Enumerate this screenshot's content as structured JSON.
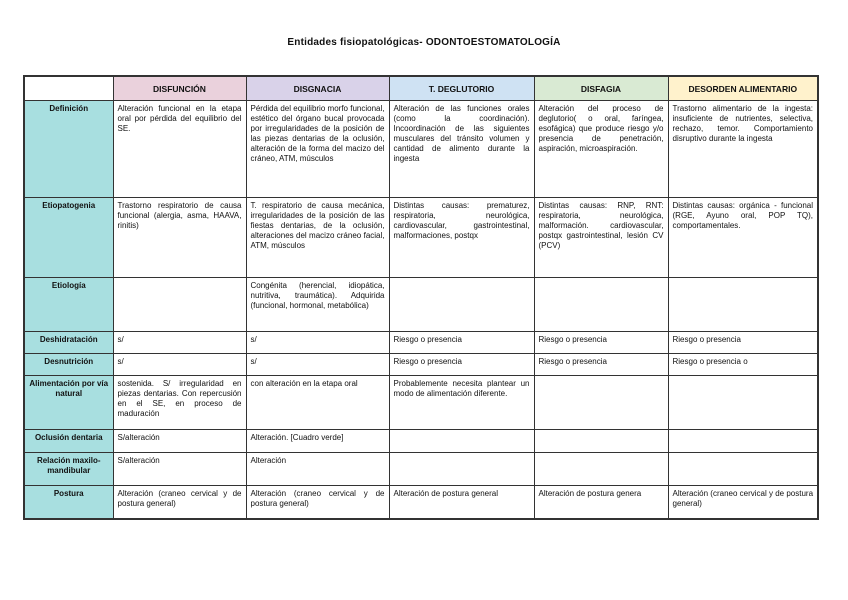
{
  "title": "Entidades fisiopatológicas- ODONTOESTOMATOLOGÍA",
  "colors": {
    "label_bg": "#a8dfe0",
    "disfuncion": "#ead1dc",
    "disgnacia": "#d9d2e9",
    "deglutorio": "#cfe2f3",
    "disfagia": "#d9ead3",
    "desorden": "#fff2cc"
  },
  "columns": [
    "",
    "DISFUNCIÓN",
    "DISGNACIA",
    "T. DEGLUTORIO",
    "DISFAGIA",
    "DESORDEN ALIMENTARIO"
  ],
  "rows": [
    {
      "label": "Definición",
      "cells": [
        "Alteración funcional en la etapa oral por pérdida del equilibrio del SE.",
        "Pérdida del equilibrio morfo funcional, estético del órgano bucal provocada por irregularidades de la posición de las piezas dentarias de la oclusión, alteración de la forma del macizo del cráneo, ATM, músculos",
        "Alteración de las funciones orales (como la coordinación). Incoordinación de las siguientes musculares del tránsito volumen y cantidad de alimento durante la ingesta",
        "Alteración del proceso de deglutorio( o oral, faríngea, esofágica) que produce riesgo y/o presencia de penetración, aspiración, microaspiración.",
        "Trastorno alimentario de la ingesta: insuficiente de nutrientes, selectiva, rechazo, temor. Comportamiento disruptivo durante la ingesta"
      ]
    },
    {
      "label": "Etiopatogenia",
      "cells": [
        "Trastorno respiratorio de causa funcional (alergia, asma, HAAVA, rinitis)",
        "T. respiratorio de causa mecánica, irregularidades de la posición de las fiestas dentarias, de la oclusión, alteraciones del macizo cráneo facial, ATM, músculos",
        "Distintas causas: prematurez, respiratoria, neurológica, cardiovascular, gastrointestinal, malformaciones, postqx",
        "Distintas causas: RNP, RNT: respiratoria, neurológica, malformación. cardiovascular, postqx gastrointestinal, lesión CV (PCV)",
        "Distintas causas: orgánica - funcional (RGE, Ayuno oral, POP TQ), comportamentales."
      ]
    },
    {
      "label": "Etiología",
      "cells": [
        "",
        "Congénita (herencial, idiopática, nutritiva, traumática). Adquirida (funcional, hormonal, metabólica)",
        "",
        "",
        ""
      ]
    },
    {
      "label": "Deshidratación",
      "cells": [
        "s/",
        "s/",
        "Riesgo o presencia",
        "Riesgo o presencia",
        "Riesgo o presencia"
      ]
    },
    {
      "label": "Desnutrición",
      "cells": [
        "s/",
        "s/",
        "Riesgo o presencia",
        "Riesgo o presencia",
        "Riesgo o presencia o"
      ]
    },
    {
      "label": "Alimentación por vía natural",
      "cells": [
        "sostenida. S/ irregularidad en piezas dentarias. Con repercusión en el SE, en proceso de maduración",
        "con alteración en la etapa oral",
        "Probablemente necesita plantear un modo de alimentación diferente.",
        "",
        ""
      ]
    },
    {
      "label": "Oclusión dentaria",
      "cells": [
        "S/alteración",
        "Alteración. [Cuadro verde]",
        "",
        "",
        ""
      ]
    },
    {
      "label": "Relación maxilo-mandibular",
      "cells": [
        "S/alteración",
        "Alteración",
        "",
        "",
        ""
      ]
    },
    {
      "label": "Postura",
      "cells": [
        "Alteración (craneo cervical y de postura general)",
        "Alteración (craneo cervical y de postura general)",
        "Alteración de postura general",
        "Alteración de postura genera",
        "Alteración (craneo cervical y de postura general)"
      ]
    }
  ]
}
